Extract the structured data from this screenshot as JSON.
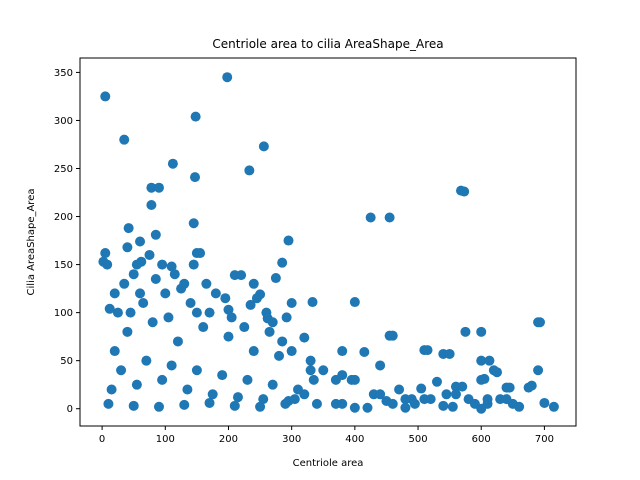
{
  "chart_data": {
    "type": "scatter",
    "title": "Centriole area to cilia AreaShape_Area",
    "xlabel": "Centriole area",
    "ylabel": "Cilia AreaShape_Area",
    "xlim": [
      -35,
      750
    ],
    "ylim": [
      -18,
      365
    ],
    "xticks": [
      0,
      100,
      200,
      300,
      400,
      500,
      600,
      700
    ],
    "yticks": [
      0,
      50,
      100,
      150,
      200,
      250,
      300,
      350
    ],
    "grid": false,
    "marker_color": "#1f77b4",
    "series": [
      {
        "points": [
          [
            5,
            325
          ],
          [
            198,
            345
          ],
          [
            35,
            280
          ],
          [
            148,
            304
          ],
          [
            256,
            273
          ],
          [
            233,
            248
          ],
          [
            147,
            241
          ],
          [
            112,
            255
          ],
          [
            78,
            230
          ],
          [
            90,
            230
          ],
          [
            78,
            212
          ],
          [
            145,
            193
          ],
          [
            425,
            199
          ],
          [
            455,
            199
          ],
          [
            568,
            227
          ],
          [
            573,
            226
          ],
          [
            42,
            188
          ],
          [
            295,
            175
          ],
          [
            85,
            181
          ],
          [
            60,
            174
          ],
          [
            5,
            162
          ],
          [
            150,
            162
          ],
          [
            155,
            162
          ],
          [
            40,
            168
          ],
          [
            75,
            160
          ],
          [
            2,
            153
          ],
          [
            8,
            150
          ],
          [
            62,
            153
          ],
          [
            110,
            148
          ],
          [
            145,
            150
          ],
          [
            95,
            150
          ],
          [
            210,
            139
          ],
          [
            220,
            139
          ],
          [
            275,
            136
          ],
          [
            285,
            152
          ],
          [
            50,
            140
          ],
          [
            130,
            130
          ],
          [
            240,
            130
          ],
          [
            250,
            119
          ],
          [
            300,
            110
          ],
          [
            333,
            111
          ],
          [
            400,
            111
          ],
          [
            20,
            120
          ],
          [
            60,
            120
          ],
          [
            100,
            120
          ],
          [
            180,
            120
          ],
          [
            12,
            104
          ],
          [
            45,
            100
          ],
          [
            150,
            100
          ],
          [
            200,
            103
          ],
          [
            235,
            108
          ],
          [
            262,
            94
          ],
          [
            292,
            95
          ],
          [
            455,
            76
          ],
          [
            460,
            76
          ],
          [
            575,
            80
          ],
          [
            600,
            80
          ],
          [
            690,
            90
          ],
          [
            693,
            90
          ],
          [
            320,
            74
          ],
          [
            510,
            61
          ],
          [
            515,
            61
          ],
          [
            300,
            60
          ],
          [
            380,
            60
          ],
          [
            415,
            59
          ],
          [
            540,
            57
          ],
          [
            550,
            57
          ],
          [
            600,
            50
          ],
          [
            613,
            50
          ],
          [
            330,
            50
          ],
          [
            440,
            45
          ],
          [
            690,
            40
          ],
          [
            350,
            40
          ],
          [
            370,
            30
          ],
          [
            380,
            35
          ],
          [
            395,
            30
          ],
          [
            400,
            30
          ],
          [
            530,
            28
          ],
          [
            560,
            23
          ],
          [
            570,
            23
          ],
          [
            600,
            30
          ],
          [
            605,
            31
          ],
          [
            620,
            40
          ],
          [
            625,
            38
          ],
          [
            640,
            22
          ],
          [
            645,
            22
          ],
          [
            675,
            22
          ],
          [
            680,
            24
          ],
          [
            470,
            20
          ],
          [
            505,
            21
          ],
          [
            480,
            10
          ],
          [
            490,
            10
          ],
          [
            520,
            10
          ],
          [
            545,
            15
          ],
          [
            560,
            15
          ],
          [
            580,
            10
          ],
          [
            590,
            5
          ],
          [
            610,
            5
          ],
          [
            630,
            10
          ],
          [
            650,
            5
          ],
          [
            430,
            15
          ],
          [
            440,
            15
          ],
          [
            450,
            8
          ],
          [
            600,
            0
          ],
          [
            610,
            10
          ],
          [
            640,
            10
          ],
          [
            660,
            2
          ],
          [
            700,
            6
          ],
          [
            715,
            2
          ],
          [
            340,
            5
          ],
          [
            370,
            5
          ],
          [
            380,
            5
          ],
          [
            400,
            1
          ],
          [
            420,
            1
          ],
          [
            460,
            5
          ],
          [
            480,
            1
          ],
          [
            495,
            5
          ],
          [
            510,
            10
          ],
          [
            540,
            3
          ],
          [
            555,
            2
          ],
          [
            20,
            60
          ],
          [
            40,
            80
          ],
          [
            80,
            90
          ],
          [
            120,
            70
          ],
          [
            160,
            85
          ],
          [
            200,
            75
          ],
          [
            240,
            60
          ],
          [
            280,
            55
          ],
          [
            30,
            40
          ],
          [
            70,
            50
          ],
          [
            110,
            45
          ],
          [
            150,
            40
          ],
          [
            190,
            35
          ],
          [
            230,
            30
          ],
          [
            270,
            25
          ],
          [
            310,
            20
          ],
          [
            15,
            20
          ],
          [
            55,
            25
          ],
          [
            95,
            30
          ],
          [
            135,
            20
          ],
          [
            175,
            15
          ],
          [
            215,
            12
          ],
          [
            255,
            10
          ],
          [
            295,
            8
          ],
          [
            10,
            5
          ],
          [
            50,
            3
          ],
          [
            90,
            2
          ],
          [
            130,
            4
          ],
          [
            170,
            6
          ],
          [
            210,
            3
          ],
          [
            250,
            2
          ],
          [
            290,
            5
          ],
          [
            305,
            10
          ],
          [
            320,
            15
          ],
          [
            330,
            40
          ],
          [
            335,
            30
          ],
          [
            25,
            100
          ],
          [
            65,
            110
          ],
          [
            105,
            95
          ],
          [
            140,
            110
          ],
          [
            170,
            100
          ],
          [
            205,
            95
          ],
          [
            225,
            85
          ],
          [
            265,
            80
          ],
          [
            285,
            70
          ],
          [
            35,
            130
          ],
          [
            55,
            150
          ],
          [
            85,
            135
          ],
          [
            115,
            140
          ],
          [
            125,
            125
          ],
          [
            165,
            130
          ],
          [
            195,
            115
          ],
          [
            245,
            115
          ],
          [
            260,
            100
          ],
          [
            270,
            90
          ]
        ]
      }
    ]
  }
}
